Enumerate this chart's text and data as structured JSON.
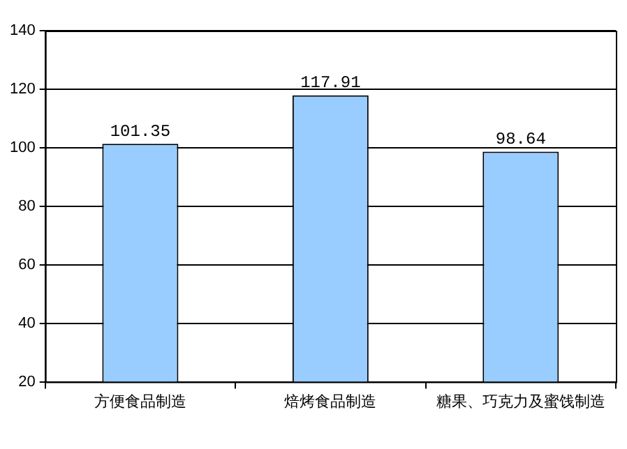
{
  "chart_data": {
    "type": "bar",
    "categories": [
      "方便食品制造",
      "焙烤食品制造",
      "糖果、巧克力及蜜饯制造"
    ],
    "values": [
      101.35,
      117.91,
      98.64
    ],
    "color": "#99ccff",
    "ylim": [
      20,
      140
    ],
    "yticks": [
      20,
      40,
      60,
      80,
      100,
      120,
      140
    ],
    "grid": "y",
    "data_labels": true,
    "legend": false
  }
}
